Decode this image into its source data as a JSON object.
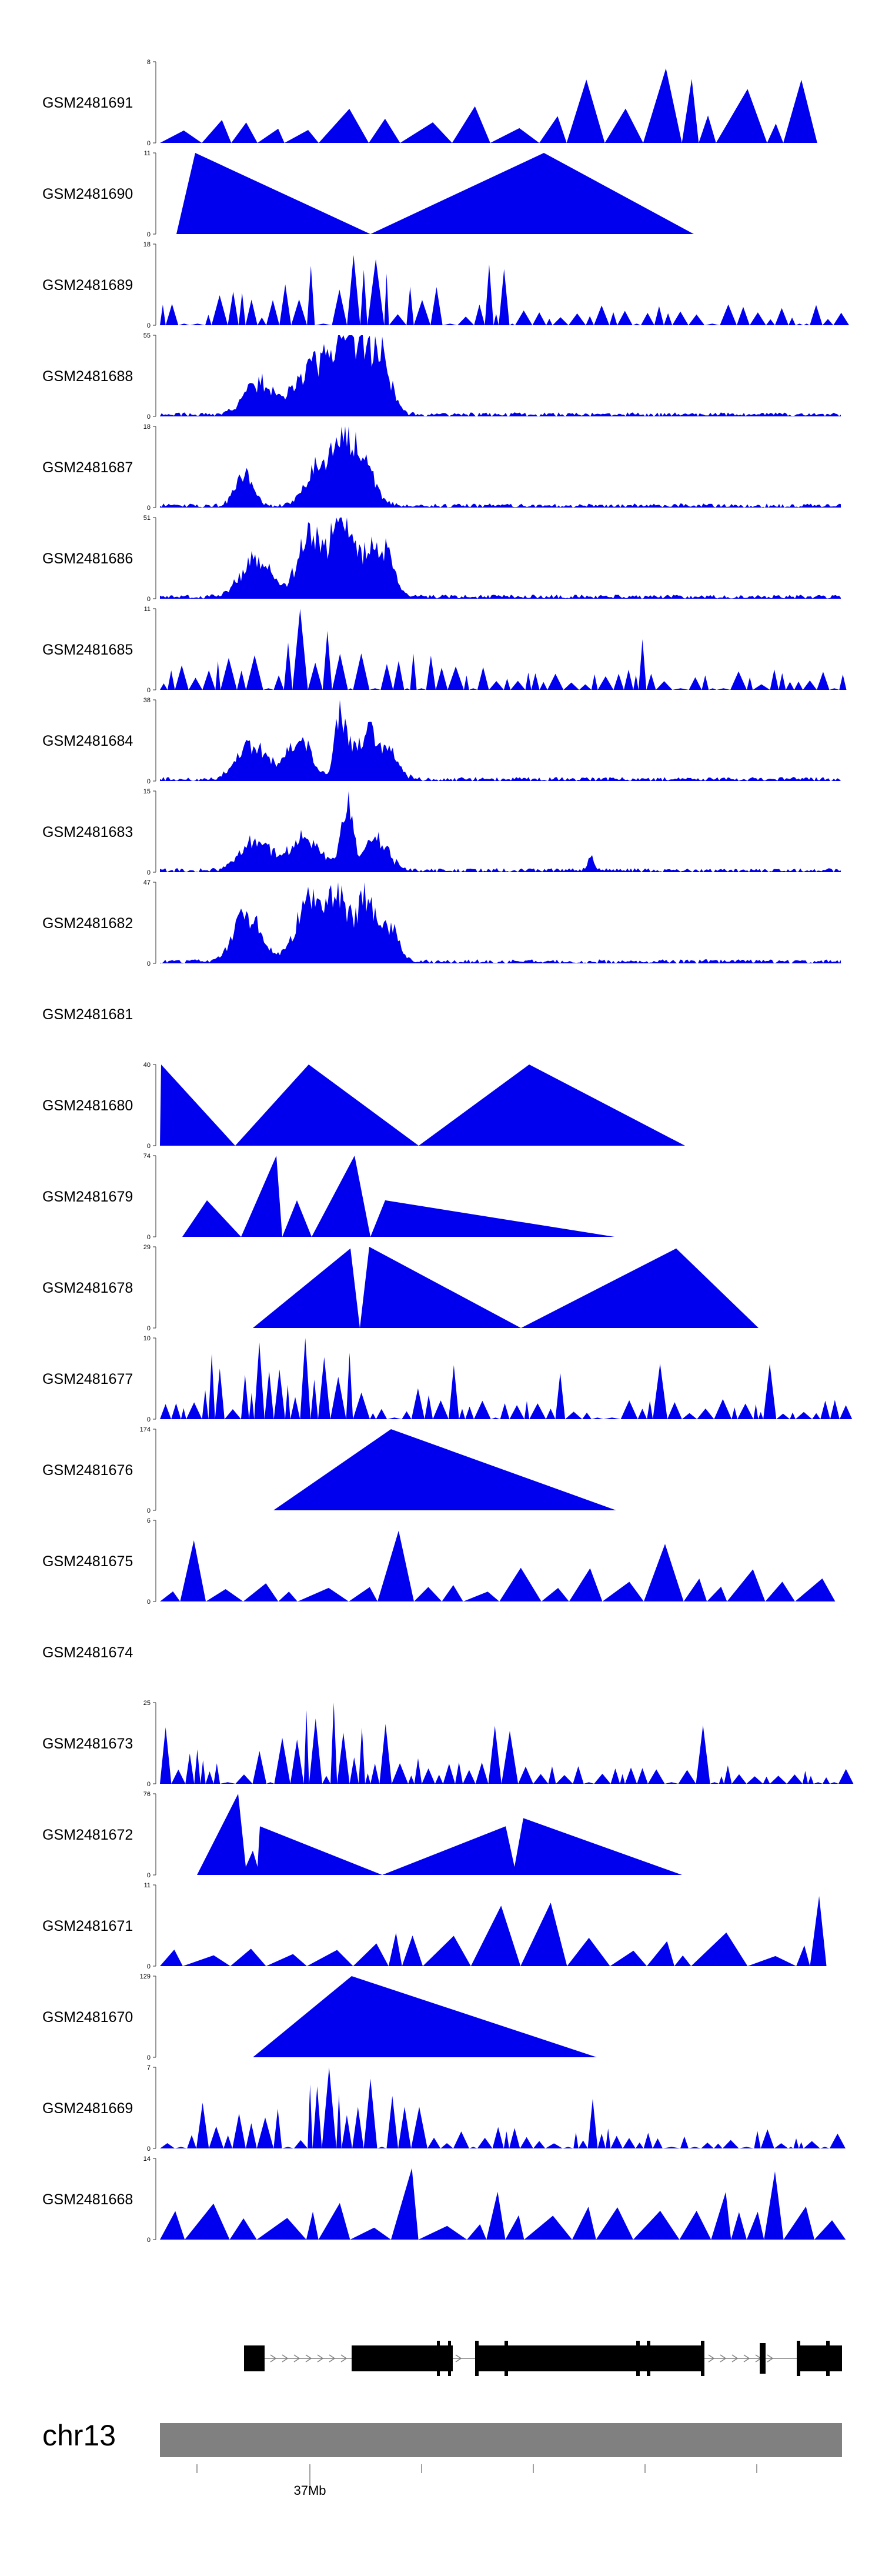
{
  "chart_data": {
    "type": "area",
    "genome": {
      "chromosome": "chr13",
      "position_label": "37Mb"
    },
    "tracks": [
      {
        "name": "GSM2481691",
        "ymax": "8"
      },
      {
        "name": "GSM2481690",
        "ymax": "11"
      },
      {
        "name": "GSM2481689",
        "ymax": "18"
      },
      {
        "name": "GSM2481688",
        "ymax": "55"
      },
      {
        "name": "GSM2481687",
        "ymax": "18"
      },
      {
        "name": "GSM2481686",
        "ymax": "51"
      },
      {
        "name": "GSM2481685",
        "ymax": "11"
      },
      {
        "name": "GSM2481684",
        "ymax": "38"
      },
      {
        "name": "GSM2481683",
        "ymax": "15"
      },
      {
        "name": "GSM2481682",
        "ymax": "47"
      },
      {
        "name": "GSM2481681",
        "ymax": ""
      },
      {
        "name": "GSM2481680",
        "ymax": "40"
      },
      {
        "name": "GSM2481679",
        "ymax": "74"
      },
      {
        "name": "GSM2481678",
        "ymax": "29"
      },
      {
        "name": "GSM2481677",
        "ymax": "10"
      },
      {
        "name": "GSM2481676",
        "ymax": "174"
      },
      {
        "name": "GSM2481675",
        "ymax": "6"
      },
      {
        "name": "GSM2481674",
        "ymax": ""
      },
      {
        "name": "GSM2481673",
        "ymax": "25"
      },
      {
        "name": "GSM2481672",
        "ymax": "76"
      },
      {
        "name": "GSM2481671",
        "ymax": "11"
      },
      {
        "name": "GSM2481670",
        "ymax": "129"
      },
      {
        "name": "GSM2481669",
        "ymax": "7"
      },
      {
        "name": "GSM2481668",
        "ymax": "14"
      }
    ],
    "ymin_label": "0",
    "fill_color": "#0000ee",
    "gene_color": "#000000",
    "ideogram_color": "#808080"
  }
}
